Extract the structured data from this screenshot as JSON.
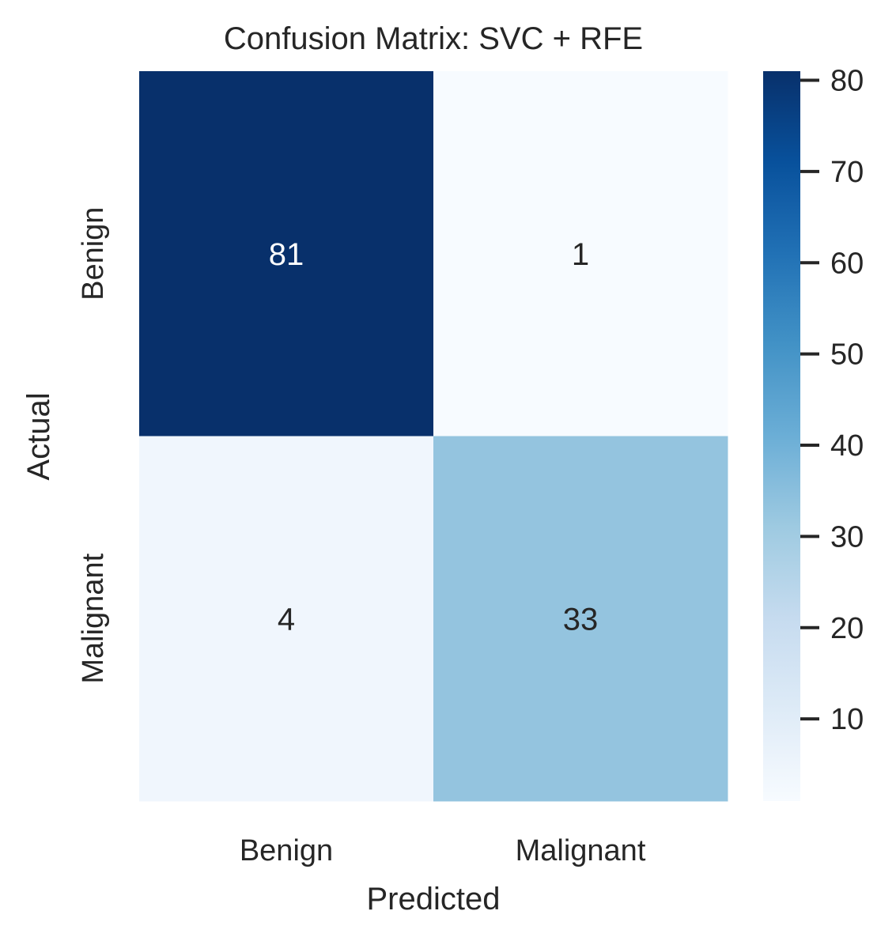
{
  "chart_data": {
    "type": "heatmap",
    "title": "Confusion Matrix: SVC + RFE",
    "xlabel": "Predicted",
    "ylabel": "Actual",
    "x_categories": [
      "Benign",
      "Malignant"
    ],
    "y_categories": [
      "Benign",
      "Malignant"
    ],
    "values": [
      [
        81,
        1
      ],
      [
        4,
        33
      ]
    ],
    "annotations": true,
    "colormap": "Blues",
    "colors": {
      "low": "#f7fbff",
      "high": "#08306b",
      "text_dark": "#262626",
      "text_light": "#ffffff"
    },
    "colorbar": {
      "range": [
        1,
        81
      ],
      "ticks": [
        10,
        20,
        30,
        40,
        50,
        60,
        70,
        80
      ]
    },
    "grid": false
  }
}
